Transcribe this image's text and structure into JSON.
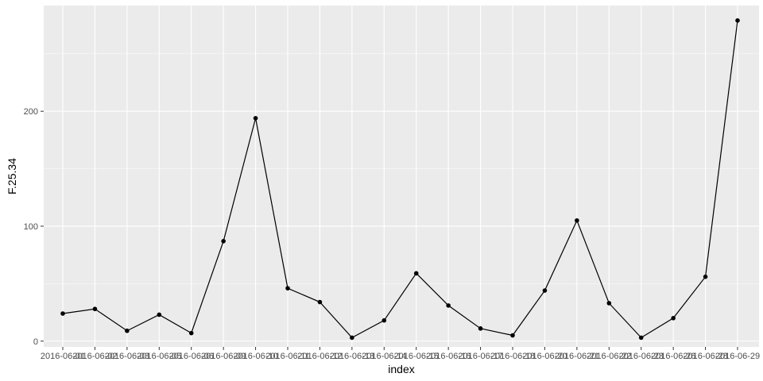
{
  "chart_data": {
    "type": "line",
    "xlabel": "index",
    "ylabel": "F.25.34",
    "x": [
      "2016-06-01",
      "2016-06-02",
      "2016-06-03",
      "2016-06-05",
      "2016-06-06",
      "2016-06-09",
      "2016-06-10",
      "2016-06-11",
      "2016-06-12",
      "2016-06-13",
      "2016-06-14",
      "2016-06-15",
      "2016-06-16",
      "2016-06-17",
      "2016-06-18",
      "2016-06-20",
      "2016-06-21",
      "2016-06-22",
      "2016-06-23",
      "2016-06-26",
      "2016-06-28",
      "2016-06-29"
    ],
    "series": [
      {
        "values": [
          24,
          28,
          9,
          23,
          7,
          87,
          194,
          46,
          34,
          3,
          18,
          59,
          31,
          11,
          5,
          44,
          105,
          33,
          3,
          20,
          56,
          279
        ]
      }
    ],
    "ylim": [
      -5,
      292
    ],
    "yticks": [
      0,
      100,
      200
    ],
    "grid": true,
    "legend": "none",
    "colors": {
      "panel": "#ebebeb",
      "grid_major": "#ffffff",
      "line": "#000000",
      "point": "#000000"
    }
  }
}
